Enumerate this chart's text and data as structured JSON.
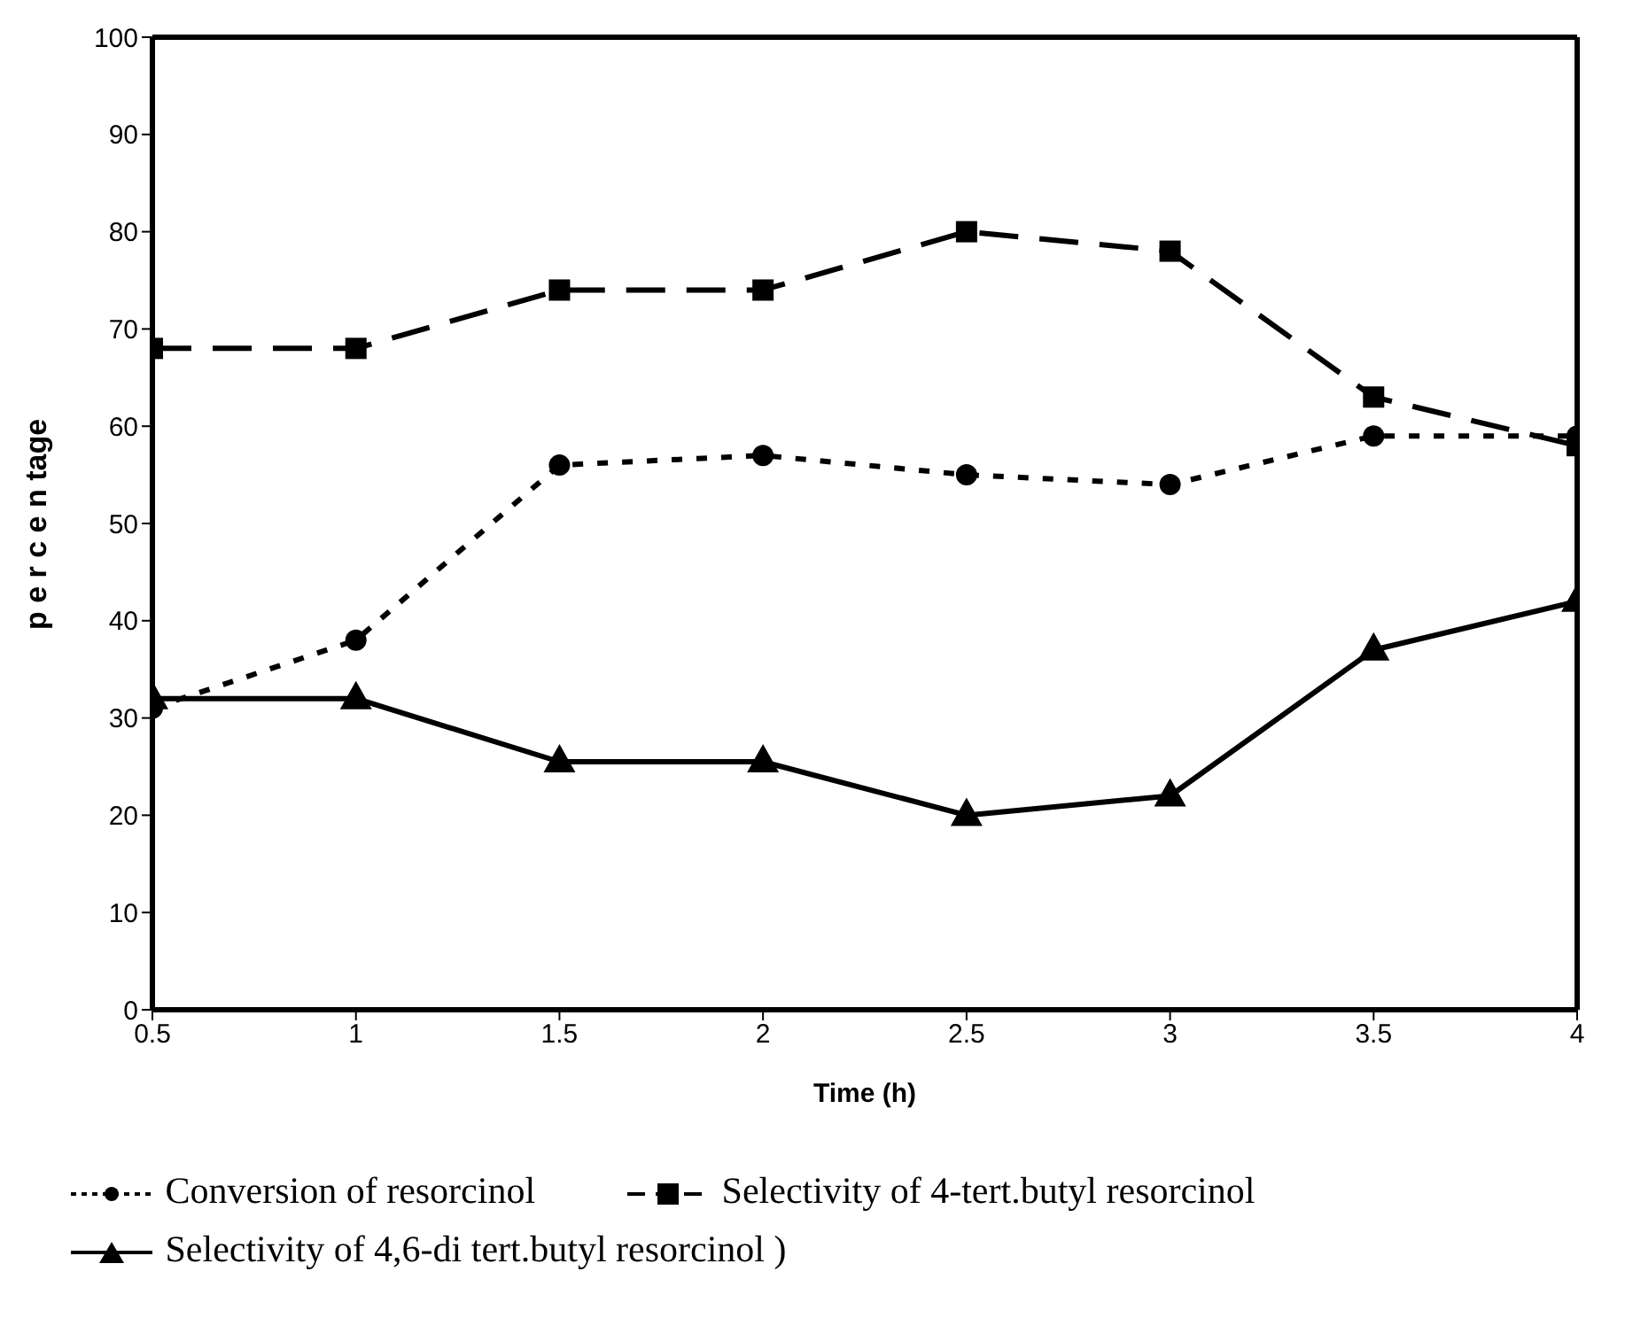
{
  "chart_data": {
    "type": "line",
    "xlabel": "Time (h)",
    "ylabel": "p e r c e n tage",
    "x": [
      0.5,
      1,
      1.5,
      2,
      2.5,
      3,
      3.5,
      4
    ],
    "series": [
      {
        "name": "Conversion of resorcinol",
        "color": "#000000",
        "marker": "circle",
        "line_style": "dotted",
        "values": [
          31,
          38,
          56,
          57,
          55,
          54,
          59,
          59
        ]
      },
      {
        "name": "Selectivity of 4-tert.butyl resorcinol",
        "color": "#000000",
        "marker": "square",
        "line_style": "dashed",
        "values": [
          68,
          68,
          74,
          74,
          80,
          78,
          63,
          58
        ]
      },
      {
        "name": "Selectivity of 4,6-di tert.butyl resorcinol )",
        "color": "#000000",
        "marker": "triangle",
        "line_style": "solid",
        "values": [
          32,
          32,
          25.5,
          25.5,
          20,
          22,
          37,
          42
        ]
      }
    ],
    "xlim": [
      0.5,
      4
    ],
    "xticks": [
      0.5,
      1,
      1.5,
      2,
      2.5,
      3,
      3.5,
      4
    ],
    "ylim": [
      0,
      100
    ],
    "yticks": [
      0,
      10,
      20,
      30,
      40,
      50,
      60,
      70,
      80,
      90,
      100
    ],
    "grid": false,
    "legend": "bottom"
  }
}
